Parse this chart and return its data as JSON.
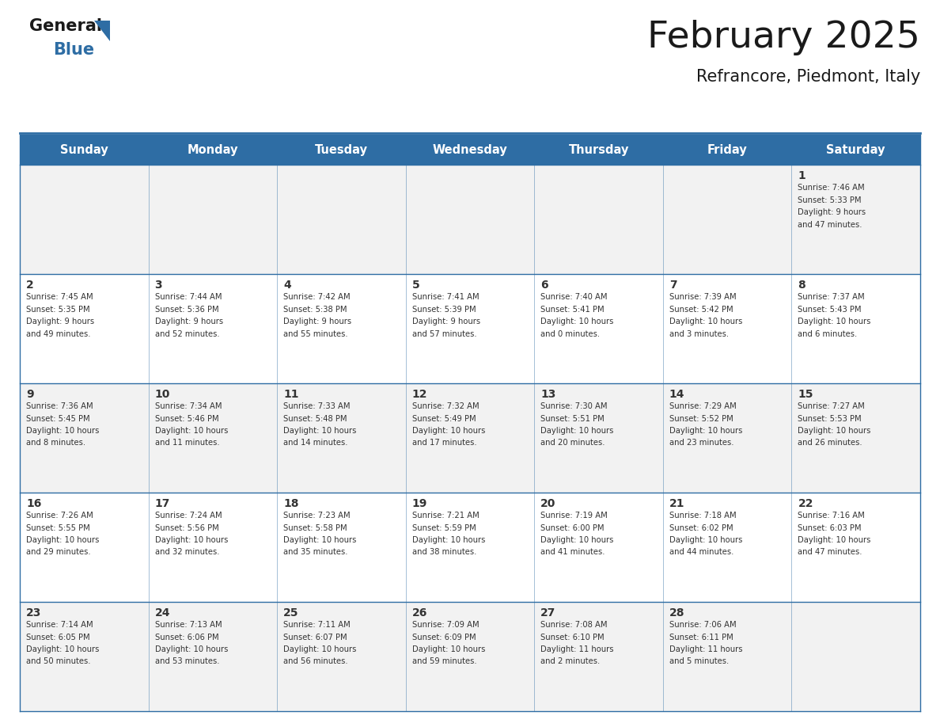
{
  "title": "February 2025",
  "subtitle": "Refrancore, Piedmont, Italy",
  "header_bg": "#2E6DA4",
  "header_text": "#FFFFFF",
  "cell_bg_odd": "#F2F2F2",
  "cell_bg_even": "#FFFFFF",
  "border_color": "#2E6DA4",
  "border_thin": "#AAAAAA",
  "text_color": "#333333",
  "days_of_week": [
    "Sunday",
    "Monday",
    "Tuesday",
    "Wednesday",
    "Thursday",
    "Friday",
    "Saturday"
  ],
  "weeks": [
    [
      {
        "day": null,
        "info": ""
      },
      {
        "day": null,
        "info": ""
      },
      {
        "day": null,
        "info": ""
      },
      {
        "day": null,
        "info": ""
      },
      {
        "day": null,
        "info": ""
      },
      {
        "day": null,
        "info": ""
      },
      {
        "day": 1,
        "info": "Sunrise: 7:46 AM\nSunset: 5:33 PM\nDaylight: 9 hours\nand 47 minutes."
      }
    ],
    [
      {
        "day": 2,
        "info": "Sunrise: 7:45 AM\nSunset: 5:35 PM\nDaylight: 9 hours\nand 49 minutes."
      },
      {
        "day": 3,
        "info": "Sunrise: 7:44 AM\nSunset: 5:36 PM\nDaylight: 9 hours\nand 52 minutes."
      },
      {
        "day": 4,
        "info": "Sunrise: 7:42 AM\nSunset: 5:38 PM\nDaylight: 9 hours\nand 55 minutes."
      },
      {
        "day": 5,
        "info": "Sunrise: 7:41 AM\nSunset: 5:39 PM\nDaylight: 9 hours\nand 57 minutes."
      },
      {
        "day": 6,
        "info": "Sunrise: 7:40 AM\nSunset: 5:41 PM\nDaylight: 10 hours\nand 0 minutes."
      },
      {
        "day": 7,
        "info": "Sunrise: 7:39 AM\nSunset: 5:42 PM\nDaylight: 10 hours\nand 3 minutes."
      },
      {
        "day": 8,
        "info": "Sunrise: 7:37 AM\nSunset: 5:43 PM\nDaylight: 10 hours\nand 6 minutes."
      }
    ],
    [
      {
        "day": 9,
        "info": "Sunrise: 7:36 AM\nSunset: 5:45 PM\nDaylight: 10 hours\nand 8 minutes."
      },
      {
        "day": 10,
        "info": "Sunrise: 7:34 AM\nSunset: 5:46 PM\nDaylight: 10 hours\nand 11 minutes."
      },
      {
        "day": 11,
        "info": "Sunrise: 7:33 AM\nSunset: 5:48 PM\nDaylight: 10 hours\nand 14 minutes."
      },
      {
        "day": 12,
        "info": "Sunrise: 7:32 AM\nSunset: 5:49 PM\nDaylight: 10 hours\nand 17 minutes."
      },
      {
        "day": 13,
        "info": "Sunrise: 7:30 AM\nSunset: 5:51 PM\nDaylight: 10 hours\nand 20 minutes."
      },
      {
        "day": 14,
        "info": "Sunrise: 7:29 AM\nSunset: 5:52 PM\nDaylight: 10 hours\nand 23 minutes."
      },
      {
        "day": 15,
        "info": "Sunrise: 7:27 AM\nSunset: 5:53 PM\nDaylight: 10 hours\nand 26 minutes."
      }
    ],
    [
      {
        "day": 16,
        "info": "Sunrise: 7:26 AM\nSunset: 5:55 PM\nDaylight: 10 hours\nand 29 minutes."
      },
      {
        "day": 17,
        "info": "Sunrise: 7:24 AM\nSunset: 5:56 PM\nDaylight: 10 hours\nand 32 minutes."
      },
      {
        "day": 18,
        "info": "Sunrise: 7:23 AM\nSunset: 5:58 PM\nDaylight: 10 hours\nand 35 minutes."
      },
      {
        "day": 19,
        "info": "Sunrise: 7:21 AM\nSunset: 5:59 PM\nDaylight: 10 hours\nand 38 minutes."
      },
      {
        "day": 20,
        "info": "Sunrise: 7:19 AM\nSunset: 6:00 PM\nDaylight: 10 hours\nand 41 minutes."
      },
      {
        "day": 21,
        "info": "Sunrise: 7:18 AM\nSunset: 6:02 PM\nDaylight: 10 hours\nand 44 minutes."
      },
      {
        "day": 22,
        "info": "Sunrise: 7:16 AM\nSunset: 6:03 PM\nDaylight: 10 hours\nand 47 minutes."
      }
    ],
    [
      {
        "day": 23,
        "info": "Sunrise: 7:14 AM\nSunset: 6:05 PM\nDaylight: 10 hours\nand 50 minutes."
      },
      {
        "day": 24,
        "info": "Sunrise: 7:13 AM\nSunset: 6:06 PM\nDaylight: 10 hours\nand 53 minutes."
      },
      {
        "day": 25,
        "info": "Sunrise: 7:11 AM\nSunset: 6:07 PM\nDaylight: 10 hours\nand 56 minutes."
      },
      {
        "day": 26,
        "info": "Sunrise: 7:09 AM\nSunset: 6:09 PM\nDaylight: 10 hours\nand 59 minutes."
      },
      {
        "day": 27,
        "info": "Sunrise: 7:08 AM\nSunset: 6:10 PM\nDaylight: 11 hours\nand 2 minutes."
      },
      {
        "day": 28,
        "info": "Sunrise: 7:06 AM\nSunset: 6:11 PM\nDaylight: 11 hours\nand 5 minutes."
      },
      {
        "day": null,
        "info": ""
      }
    ]
  ],
  "logo_general_color": "#1a1a1a",
  "logo_blue_color": "#2E6DA4",
  "logo_triangle_color": "#2E6DA4"
}
